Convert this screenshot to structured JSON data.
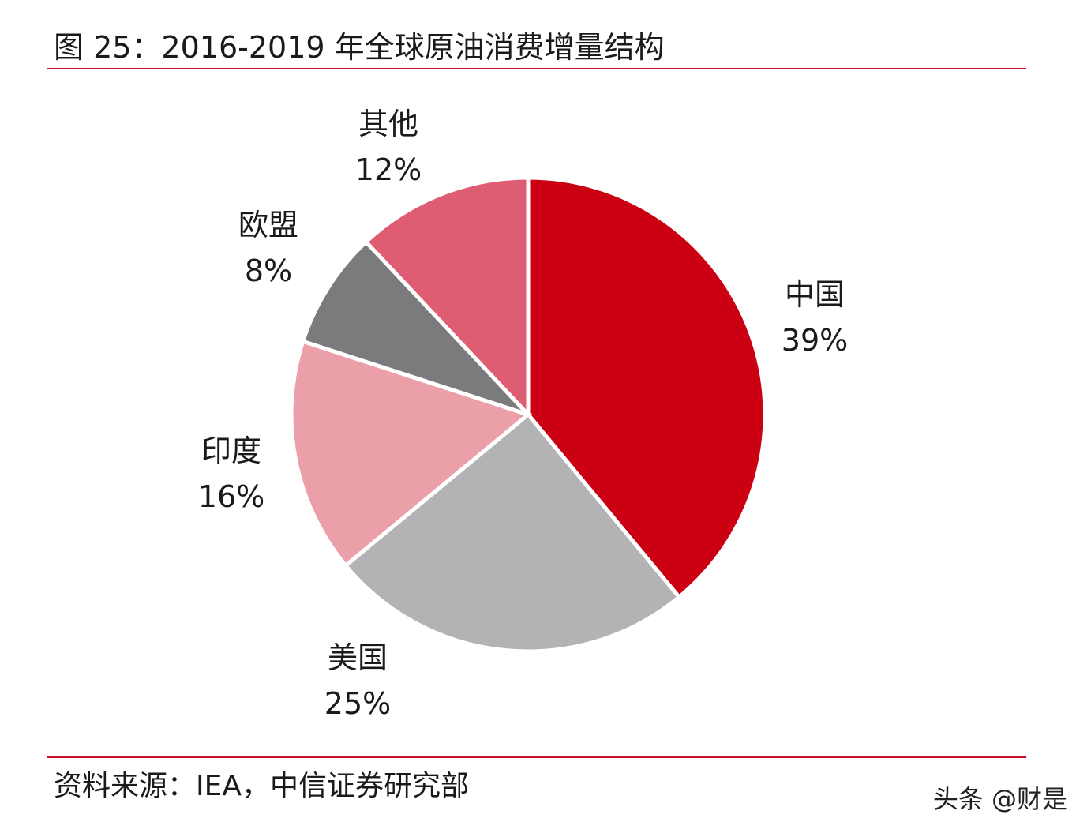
{
  "title": "图 25：2016-2019 年全球原油消费增量结构",
  "source": "资料来源：IEA，中信证券研究部",
  "watermark": "头条 @财是",
  "colors": {
    "rule": "#c8102e"
  },
  "chart_data": {
    "type": "pie",
    "slices": [
      {
        "label": "中国",
        "value": 39,
        "value_label": "39%",
        "color": "#cc0013"
      },
      {
        "label": "美国",
        "value": 25,
        "value_label": "25%",
        "color": "#b3b3b6"
      },
      {
        "label": "印度",
        "value": 16,
        "value_label": "16%",
        "color": "#eba0a9"
      },
      {
        "label": "欧盟",
        "value": 8,
        "value_label": "8%",
        "color": "#7b7b7e"
      },
      {
        "label": "其他",
        "value": 12,
        "value_label": "12%",
        "color": "#de5d72"
      }
    ]
  }
}
